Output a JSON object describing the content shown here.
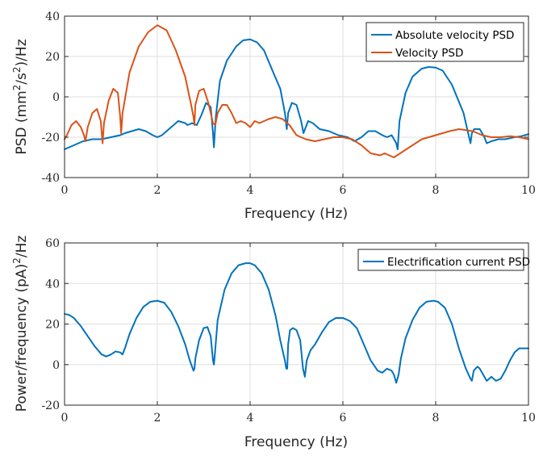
{
  "chart_data": [
    {
      "type": "line",
      "xlabel": "Frequency (Hz)",
      "ylabel": "PSD (mm²/s²)/Hz",
      "xlim": [
        0,
        10
      ],
      "ylim": [
        -40,
        40
      ],
      "xticks": [
        "0",
        "2",
        "4",
        "6",
        "8",
        "10"
      ],
      "yticks": [
        "-40",
        "-20",
        "0",
        "20",
        "40"
      ],
      "grid": true,
      "legend_position": "top-right",
      "series": [
        {
          "name": "Absolute velocity PSD",
          "color": "#0072BD",
          "x": [
            0,
            0.2,
            0.4,
            0.6,
            0.8,
            1.0,
            1.2,
            1.3,
            1.45,
            1.6,
            1.75,
            1.9,
            2.0,
            2.1,
            2.3,
            2.45,
            2.6,
            2.65,
            2.75,
            2.85,
            2.95,
            3.05,
            3.15,
            3.2,
            3.22,
            3.26,
            3.35,
            3.5,
            3.7,
            3.85,
            4.0,
            4.15,
            4.3,
            4.5,
            4.65,
            4.75,
            4.79,
            4.82,
            4.9,
            5.0,
            5.1,
            5.15,
            5.25,
            5.35,
            5.5,
            5.7,
            5.9,
            6.1,
            6.25,
            6.4,
            6.55,
            6.7,
            6.85,
            6.95,
            7.05,
            7.15,
            7.18,
            7.22,
            7.35,
            7.5,
            7.7,
            7.85,
            8.0,
            8.15,
            8.35,
            8.6,
            8.75,
            8.78,
            8.83,
            8.95,
            9.05,
            9.1,
            9.2,
            9.35,
            9.5,
            9.7,
            9.85,
            10.0
          ],
          "y": [
            -26,
            -24,
            -22,
            -21,
            -21,
            -20,
            -19,
            -18,
            -17,
            -16,
            -17,
            -19,
            -20,
            -19,
            -15,
            -12,
            -13,
            -14,
            -13,
            -14,
            -9,
            -3,
            -5,
            -18,
            -25,
            -10,
            8,
            18,
            25,
            28,
            28.5,
            27,
            23,
            12,
            4,
            -8,
            -16,
            -8,
            -3,
            -4,
            -12,
            -18,
            -12,
            -13,
            -16,
            -17,
            -19,
            -20,
            -22,
            -20,
            -17,
            -17,
            -19,
            -20,
            -19,
            -23,
            -26,
            -12,
            2,
            10,
            14,
            14.8,
            14.5,
            13,
            6,
            -8,
            -23,
            -18,
            -16,
            -16,
            -20,
            -23,
            -22,
            -21,
            -21,
            -20,
            -19.5,
            -18.5
          ]
        },
        {
          "name": "Velocity PSD",
          "color": "#D95319",
          "x": [
            0,
            0.05,
            0.15,
            0.25,
            0.35,
            0.42,
            0.45,
            0.5,
            0.6,
            0.7,
            0.78,
            0.82,
            0.85,
            0.95,
            1.05,
            1.15,
            1.2,
            1.22,
            1.25,
            1.4,
            1.6,
            1.8,
            2.0,
            2.2,
            2.4,
            2.6,
            2.72,
            2.78,
            2.8,
            2.82,
            2.9,
            3.0,
            3.1,
            3.2,
            3.25,
            3.3,
            3.4,
            3.5,
            3.6,
            3.7,
            3.8,
            3.9,
            4.0,
            4.1,
            4.2,
            4.3,
            4.4,
            4.55,
            4.7,
            4.85,
            5.0,
            5.2,
            5.4,
            5.6,
            5.8,
            6.0,
            6.2,
            6.4,
            6.6,
            6.8,
            6.9,
            7.0,
            7.1,
            7.3,
            7.5,
            7.7,
            8.0,
            8.3,
            8.5,
            8.8,
            9.0,
            9.2,
            9.4,
            9.6,
            9.8,
            10.0
          ],
          "y": [
            -21,
            -19,
            -14,
            -12,
            -15,
            -19,
            -22,
            -15,
            -8,
            -6,
            -12,
            -23,
            -13,
            -2,
            4,
            2,
            -10,
            -18,
            -8,
            12,
            25,
            32,
            35.5,
            33,
            23,
            10,
            -3,
            -10,
            -14,
            -4,
            3,
            4,
            -3,
            -13,
            -14,
            -8,
            -4,
            -4,
            -8,
            -13,
            -12,
            -13,
            -15,
            -12,
            -13,
            -12,
            -11,
            -10,
            -11,
            -14,
            -19,
            -21,
            -22,
            -21,
            -20,
            -20,
            -21,
            -24,
            -28,
            -29,
            -28,
            -29,
            -30,
            -27,
            -24,
            -21,
            -19,
            -17,
            -16,
            -17,
            -19,
            -20,
            -20,
            -19.5,
            -20,
            -21
          ]
        }
      ]
    },
    {
      "type": "line",
      "xlabel": "Frequency (Hz)",
      "ylabel": "Power/frequency (pA)²/Hz",
      "xlim": [
        0,
        10
      ],
      "ylim": [
        -20,
        60
      ],
      "xticks": [
        "0",
        "2",
        "4",
        "6",
        "8",
        "10"
      ],
      "yticks": [
        "-20",
        "0",
        "20",
        "40",
        "60"
      ],
      "grid": true,
      "legend_position": "top-right",
      "series": [
        {
          "name": "Electrification current PSD",
          "color": "#0072BD",
          "x": [
            0,
            0.1,
            0.2,
            0.35,
            0.5,
            0.65,
            0.8,
            0.9,
            1.0,
            1.1,
            1.2,
            1.25,
            1.3,
            1.4,
            1.55,
            1.7,
            1.85,
            2.0,
            2.15,
            2.3,
            2.45,
            2.6,
            2.7,
            2.78,
            2.8,
            2.82,
            2.9,
            3.0,
            3.08,
            3.15,
            3.2,
            3.22,
            3.24,
            3.3,
            3.45,
            3.6,
            3.75,
            3.9,
            4.0,
            4.1,
            4.25,
            4.4,
            4.55,
            4.65,
            4.75,
            4.78,
            4.8,
            4.82,
            4.86,
            4.92,
            5.0,
            5.08,
            5.14,
            5.18,
            5.22,
            5.3,
            5.4,
            5.55,
            5.7,
            5.85,
            6.0,
            6.15,
            6.3,
            6.45,
            6.6,
            6.75,
            6.85,
            6.95,
            7.05,
            7.1,
            7.15,
            7.2,
            7.25,
            7.35,
            7.5,
            7.65,
            7.8,
            7.95,
            8.05,
            8.2,
            8.35,
            8.5,
            8.65,
            8.75,
            8.78,
            8.82,
            8.9,
            8.95,
            9.05,
            9.1,
            9.15,
            9.2,
            9.3,
            9.4,
            9.5,
            9.6,
            9.7,
            9.8,
            9.9,
            10.0
          ],
          "y": [
            25,
            24.5,
            23,
            19,
            14,
            9,
            5,
            4,
            5,
            6.5,
            6,
            5,
            8,
            15,
            23,
            28.5,
            31,
            31.5,
            30.5,
            26,
            19,
            10,
            2,
            -3,
            -2,
            3,
            12,
            18,
            18.5,
            14,
            2,
            0,
            5,
            22,
            37,
            45,
            49,
            50,
            50,
            49,
            45,
            37,
            24,
            12,
            2,
            -2,
            -2,
            10,
            17,
            18,
            17,
            12,
            -2,
            -6,
            2,
            7,
            10,
            16,
            21,
            23,
            23,
            21.5,
            18,
            10,
            2,
            -3,
            -4,
            -2,
            -3,
            -5,
            -9,
            -5,
            3,
            13,
            22,
            28,
            31,
            31.5,
            31,
            28,
            20,
            8,
            -2,
            -7,
            -8,
            -3,
            -1,
            -2,
            -6,
            -8,
            -7,
            -6,
            -8,
            -7,
            -3,
            2,
            6,
            8,
            8,
            8
          ]
        }
      ]
    }
  ]
}
